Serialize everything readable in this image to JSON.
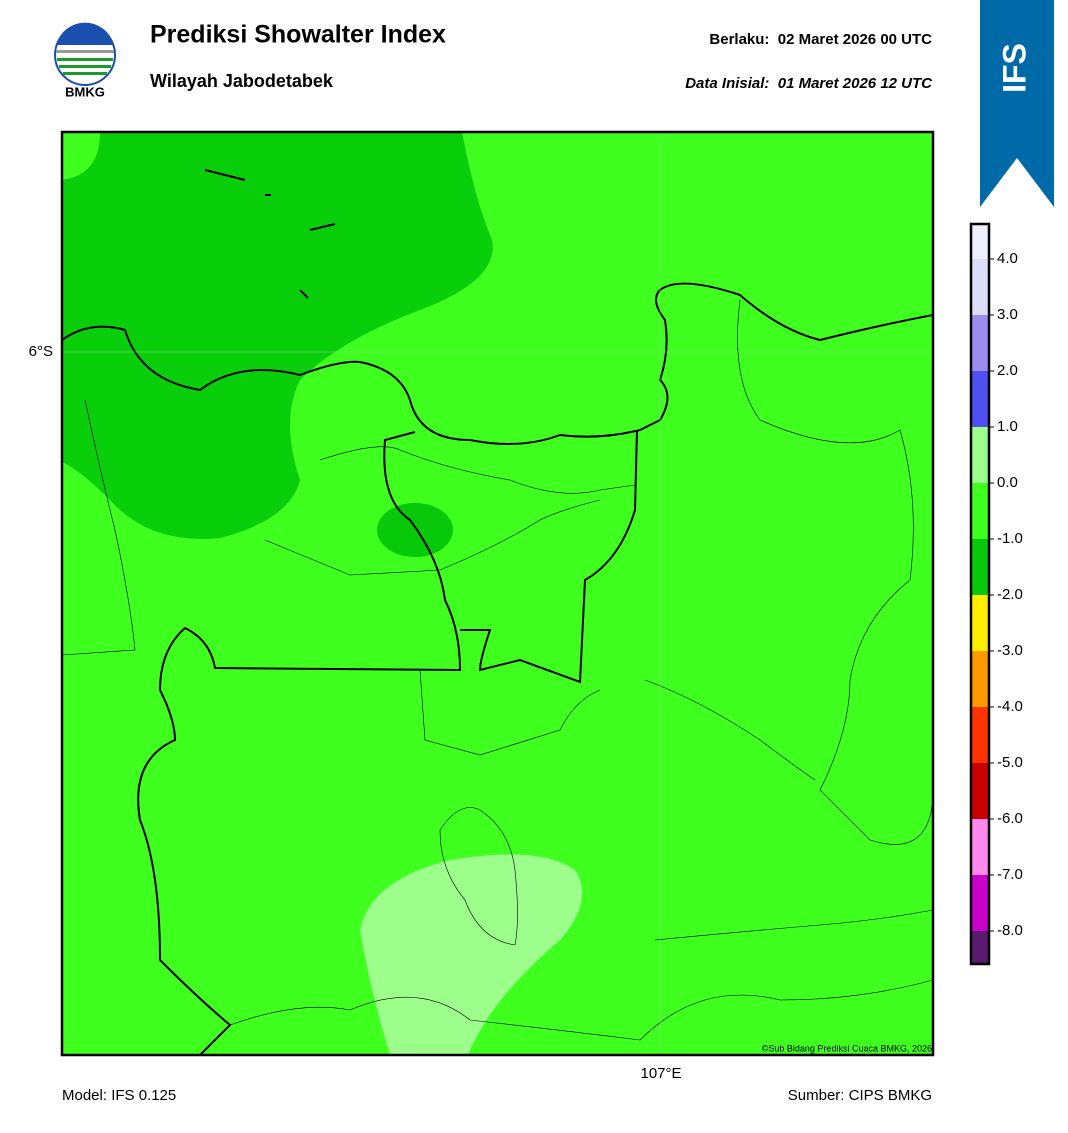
{
  "header": {
    "title": "Prediksi Showalter Index",
    "subtitle": "Wilayah Jabodetabek",
    "valid": "Berlaku:  02 Maret 2026 00 UTC",
    "init": "Data Inisial:  01 Maret 2026 12 UTC",
    "logo_text": "BMKG",
    "badge": "IFS"
  },
  "map": {
    "lat_label": "6°S",
    "lon_label": "107°E",
    "credit": "©Sub Bidang Prediksi Cuaca BMKG, 2026"
  },
  "colorbar": {
    "labels": [
      "4.0",
      "3.0",
      "2.0",
      "1.0",
      "0.0",
      "-1.0",
      "-2.0",
      "-3.0",
      "-4.0",
      "-5.0",
      "-6.0",
      "-7.0",
      "-8.0"
    ],
    "colors": [
      "#eeeefc",
      "#dcdcf8",
      "#9c8cf0",
      "#5050f0",
      "#9cff8c",
      "#3fff1f",
      "#08c80a",
      "#ffee00",
      "#ff9900",
      "#ff3300",
      "#c80000",
      "#ff88ee",
      "#c800c8",
      "#5a1a6e"
    ]
  },
  "footer": {
    "model": "Model: IFS 0.125",
    "source": "Sumber: CIPS BMKG"
  }
}
